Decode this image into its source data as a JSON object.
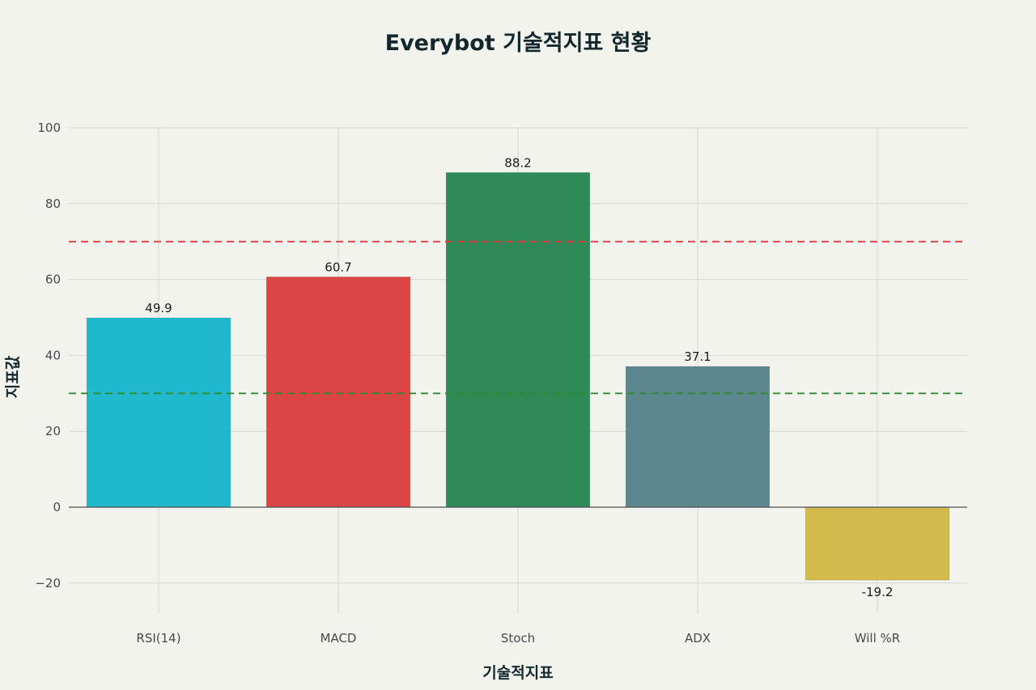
{
  "chart_data": {
    "type": "bar",
    "title": "Everybot 기술적지표 현황",
    "xlabel": "기술적지표",
    "ylabel": "지표값",
    "categories": [
      "RSI(14)",
      "MACD",
      "Stoch",
      "ADX",
      "Will %R"
    ],
    "values": [
      49.9,
      60.7,
      88.2,
      37.1,
      -19.2
    ],
    "value_labels": [
      "49.9",
      "60.7",
      "88.2",
      "37.1",
      "-19.2"
    ],
    "colors": [
      "#1fb8cd",
      "#db4545",
      "#2e8b57",
      "#5d878f",
      "#d2ba4c"
    ],
    "ylim": [
      -28,
      100
    ],
    "yticks": [
      -20,
      0,
      20,
      40,
      60,
      80,
      100
    ],
    "ytick_labels": [
      "−20",
      "0",
      "20",
      "40",
      "60",
      "80",
      "100"
    ],
    "grid": true,
    "reference_lines": [
      {
        "value": 70,
        "color": "#e0393e"
      },
      {
        "value": 30,
        "color": "#2e8b2e"
      }
    ]
  }
}
